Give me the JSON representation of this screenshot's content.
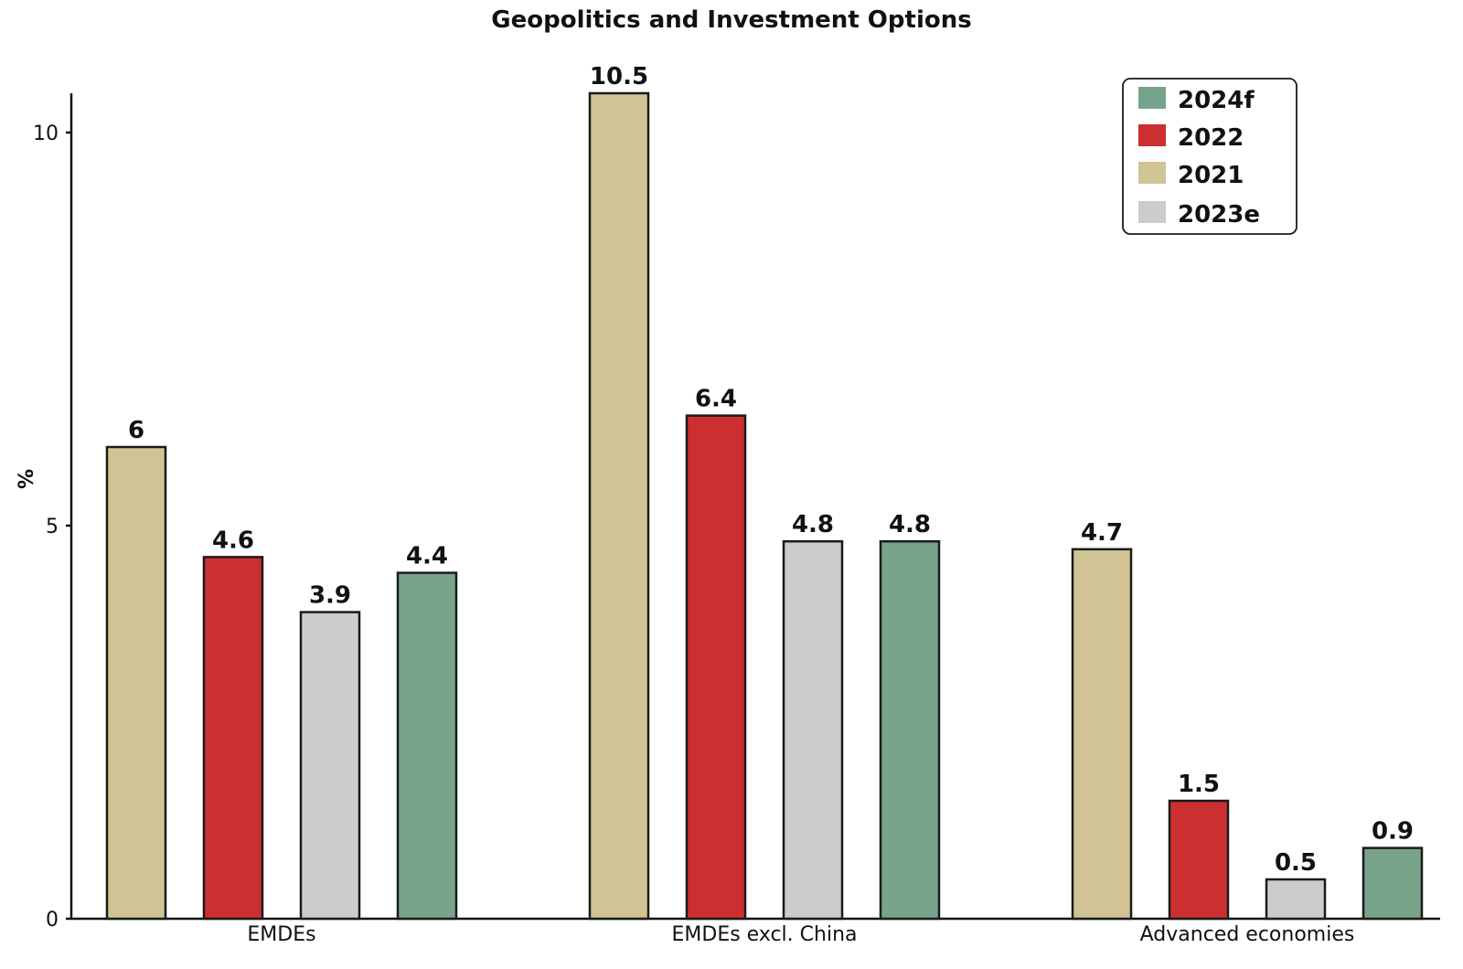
{
  "chart_data": {
    "type": "bar",
    "title": "Geopolitics and Investment Options",
    "xlabel": "",
    "ylabel": "%",
    "ylim": [
      0,
      10.5
    ],
    "yticks": [
      0,
      5,
      10
    ],
    "grid": false,
    "legend_position": "top-right",
    "categories": [
      "EMDEs",
      "EMDEs excl. China",
      "Advanced economies"
    ],
    "series": [
      {
        "name": "2021",
        "color": "#D1C494",
        "values": [
          6,
          10.5,
          4.7
        ]
      },
      {
        "name": "2022",
        "color": "#CC2F2F",
        "values": [
          4.6,
          6.4,
          1.5
        ]
      },
      {
        "name": "2023e",
        "color": "#CCCCCC",
        "values": [
          3.9,
          4.8,
          0.5
        ]
      },
      {
        "name": "2024f",
        "color": "#76A38A",
        "values": [
          4.4,
          4.8,
          0.9
        ]
      }
    ],
    "legend_order": [
      "2024f",
      "2022",
      "2021",
      "2023e"
    ]
  }
}
